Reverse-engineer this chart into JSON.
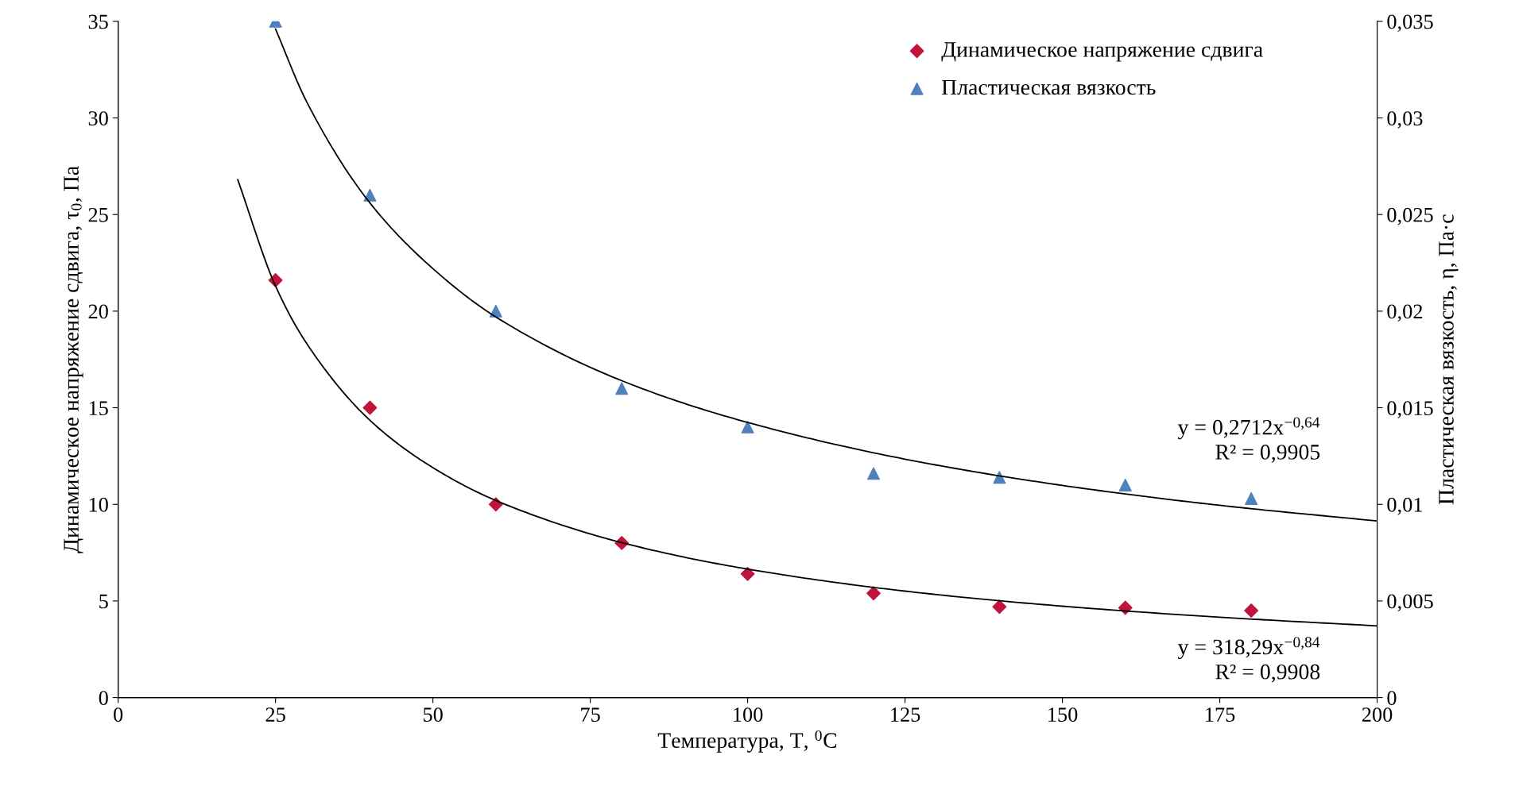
{
  "chart_data": {
    "type": "scatter",
    "xlabel": "Температура, T, $^{0}$C",
    "ylabel": "Динамическое напряжение сдвига, τ$_{0}$, Па",
    "y2label": "Пластическая вязкость, η, Па·с",
    "xlim": [
      0,
      200
    ],
    "xticks": [
      0,
      25,
      50,
      75,
      100,
      125,
      150,
      175,
      200
    ],
    "ylim": [
      0,
      35
    ],
    "yticks": [
      0,
      5,
      10,
      15,
      20,
      25,
      30,
      35
    ],
    "y2lim": [
      0,
      0.035
    ],
    "y2ticks": [
      {
        "value": 0,
        "label": "0"
      },
      {
        "value": 0.005,
        "label": "0,005"
      },
      {
        "value": 0.01,
        "label": "0,01"
      },
      {
        "value": 0.015,
        "label": "0,015"
      },
      {
        "value": 0.02,
        "label": "0,02"
      },
      {
        "value": 0.025,
        "label": "0,025"
      },
      {
        "value": 0.03,
        "label": "0,03"
      },
      {
        "value": 0.035,
        "label": "0,035"
      }
    ],
    "grid": false,
    "legend": "top right",
    "x": [
      25,
      40,
      60,
      80,
      100,
      120,
      140,
      160,
      180
    ],
    "series": [
      {
        "name": "Динамическое напряжение сдвига",
        "marker": "diamond",
        "color": "#c0143c",
        "values": [
          21.6,
          15.0,
          10.0,
          8.0,
          6.4,
          5.4,
          4.7,
          4.65,
          4.5
        ]
      },
      {
        "name": "Пластическая вязкость",
        "marker": "triangle",
        "color": "#4f81bd",
        "axis": "y2",
        "values": [
          0.035,
          0.026,
          0.02,
          0.016,
          0.014,
          0.0116,
          0.0114,
          0.011,
          0.0103
        ]
      },
      {
        "type": "line",
        "color": "#000000",
        "x": [
          19,
          25,
          30,
          40,
          50,
          60,
          80,
          100,
          125,
          150,
          175,
          200
        ],
        "values": [
          26.8,
          21.3,
          18.3,
          14.35,
          11.9,
          10.2,
          8.02,
          6.65,
          5.51,
          4.73,
          4.16,
          3.71
        ]
      },
      {
        "type": "line",
        "color": "#000000",
        "axis": "y2",
        "x": [
          25,
          30,
          40,
          50,
          60,
          80,
          100,
          125,
          150,
          175,
          200
        ],
        "values": [
          0.0346,
          0.0308,
          0.0256,
          0.0222,
          0.0197,
          0.0164,
          0.01424,
          0.01234,
          0.01098,
          0.00995,
          0.00914
        ]
      }
    ],
    "annotations": [
      "y = 0,2712x$^{−0,64}$\nR² = 0,9905",
      "y = 318,29x$^{−0,84}$\nR² = 0,9908"
    ]
  }
}
